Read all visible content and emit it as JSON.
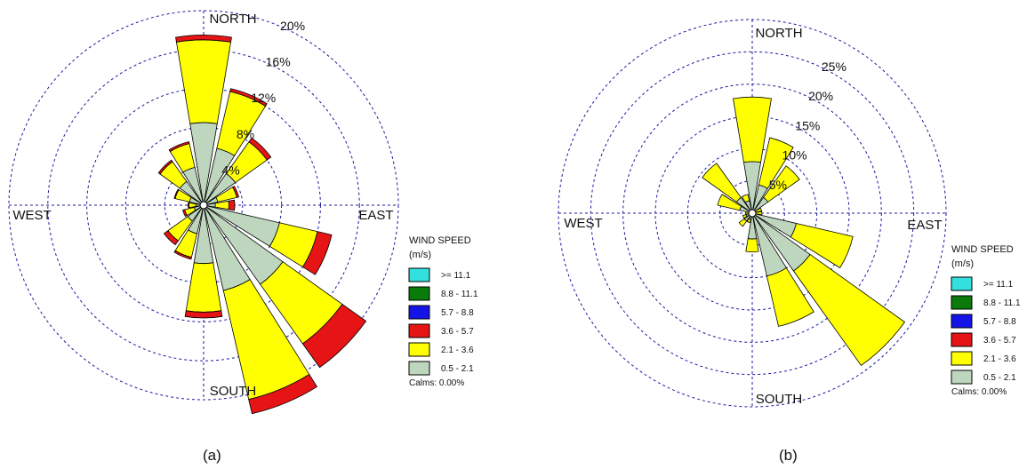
{
  "chart_data": [
    {
      "type": "wind-rose",
      "caption": "(a)",
      "directions": [
        "N",
        "NNE",
        "NE",
        "ENE",
        "E",
        "ESE",
        "SE",
        "SSE",
        "S",
        "SSW",
        "SW",
        "WSW",
        "W",
        "WNW",
        "NW",
        "NNW"
      ],
      "compass_labels": {
        "north": "NORTH",
        "east": "EAST",
        "south": "SOUTH",
        "west": "WEST"
      },
      "radial_max": 20,
      "radial_ticks": [
        4,
        8,
        12,
        16,
        20
      ],
      "radial_tick_labels": [
        "4%",
        "8%",
        "12%",
        "16%",
        "20%"
      ],
      "legend": {
        "title_line1": "WIND SPEED",
        "title_line2": "(m/s)",
        "classes": [
          {
            "label": ">= 11.1",
            "color": "#33e0e0"
          },
          {
            "label": "8.8 - 11.1",
            "color": "#0a7a0a"
          },
          {
            "label": "5.7 -  8.8",
            "color": "#1414e6"
          },
          {
            "label": "3.6 -  5.7",
            "color": "#e61414"
          },
          {
            "label": "2.1 -  3.6",
            "color": "#ffff00"
          },
          {
            "label": "0.5 -  2.1",
            "color": "#bed6be"
          }
        ],
        "calms": "Calms: 0.00%"
      },
      "series": [
        {
          "name": "0.5 -  2.1",
          "values": [
            8.5,
            6.0,
            4.0,
            1.5,
            1.2,
            8.0,
            10.0,
            9.0,
            6.0,
            3.0,
            2.0,
            1.0,
            0.8,
            1.5,
            3.0,
            4.0
          ]
        },
        {
          "name": "2.1 -  3.6",
          "values": [
            8.5,
            6.0,
            4.0,
            2.0,
            1.4,
            4.0,
            7.5,
            11.5,
            5.0,
            2.5,
            2.5,
            1.0,
            0.7,
            1.5,
            2.5,
            2.5
          ]
        },
        {
          "name": "3.6 -  5.7",
          "values": [
            0.5,
            0.3,
            0.5,
            0.2,
            0.6,
            1.5,
            3.0,
            1.5,
            0.6,
            0.2,
            0.5,
            0.2,
            0.1,
            0.1,
            0.2,
            0.2
          ]
        }
      ]
    },
    {
      "type": "wind-rose",
      "caption": "(b)",
      "directions": [
        "N",
        "NNE",
        "NE",
        "ENE",
        "E",
        "ESE",
        "SE",
        "SSE",
        "S",
        "SSW",
        "SW",
        "WSW",
        "W",
        "WNW",
        "NW",
        "NNW"
      ],
      "compass_labels": {
        "north": "NORTH",
        "east": "EAST",
        "south": "SOUTH",
        "west": "WEST"
      },
      "radial_max": 30,
      "radial_ticks": [
        5,
        10,
        15,
        20,
        25,
        30
      ],
      "radial_tick_labels": [
        "5%",
        "10%",
        "15%",
        "20%",
        "25%",
        ""
      ],
      "legend": {
        "title_line1": "WIND SPEED",
        "title_line2": "(m/s)",
        "classes": [
          {
            "label": ">= 11.1",
            "color": "#33e0e0"
          },
          {
            "label": "8.8 - 11.1",
            "color": "#0a7a0a"
          },
          {
            "label": "5.7 -  8.8",
            "color": "#1414e6"
          },
          {
            "label": "3.6 -  5.7",
            "color": "#e61414"
          },
          {
            "label": "2.1 -  3.6",
            "color": "#ffff00"
          },
          {
            "label": "0.5 -  2.1",
            "color": "#bed6be"
          }
        ],
        "calms": "Calms: 0.00%"
      },
      "series": [
        {
          "name": "0.5 -  2.1",
          "values": [
            8.0,
            4.5,
            3.0,
            0.5,
            0.5,
            7.0,
            11.0,
            10.0,
            4.0,
            1.0,
            1.5,
            1.0,
            0.5,
            2.0,
            3.0,
            2.0
          ]
        },
        {
          "name": "2.1 -  3.6",
          "values": [
            10.0,
            7.5,
            6.0,
            1.0,
            1.0,
            9.0,
            18.0,
            8.0,
            2.0,
            0.5,
            1.0,
            0.5,
            0.5,
            3.5,
            6.5,
            1.0
          ]
        },
        {
          "name": "3.6 -  5.7",
          "values": [
            0.0,
            0.0,
            0.0,
            0.0,
            0.0,
            0.0,
            0.0,
            0.0,
            0.0,
            0.0,
            0.0,
            0.0,
            0.0,
            0.0,
            0.0,
            0.0
          ]
        }
      ]
    }
  ]
}
